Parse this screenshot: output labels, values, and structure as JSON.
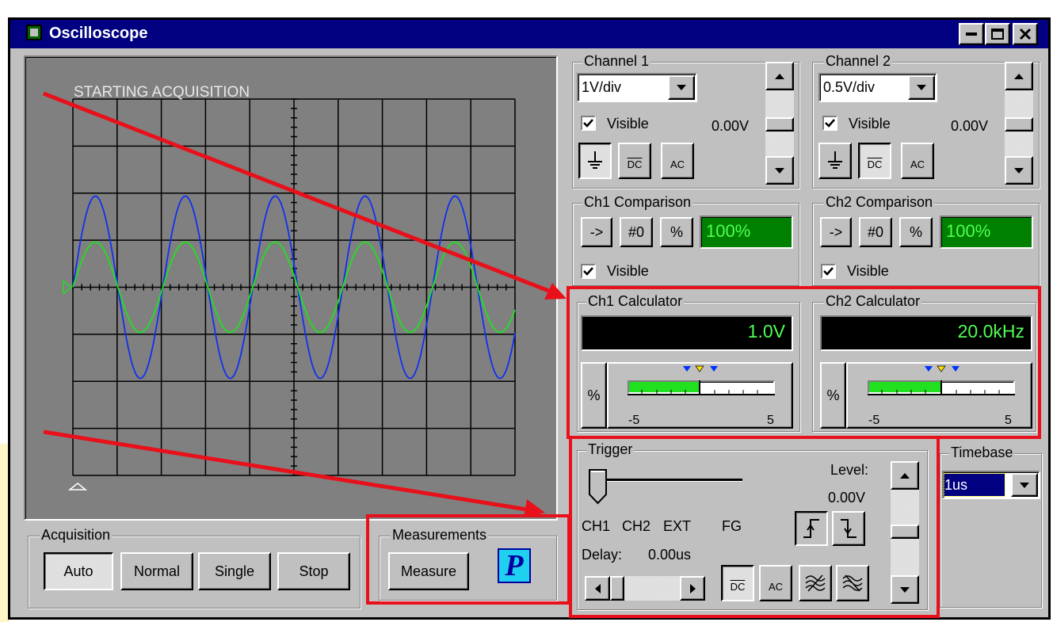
{
  "window": {
    "title": "Oscilloscope"
  },
  "screen": {
    "status": "STARTING ACQUISITION"
  },
  "channel1": {
    "title": "Channel 1",
    "scale": "1V/div",
    "visible": "Visible",
    "offset": "0.00V",
    "coupling": [
      "DC",
      "AC"
    ]
  },
  "channel2": {
    "title": "Channel 2",
    "scale": "0.5V/div",
    "visible": "Visible",
    "offset": "0.00V",
    "coupling": [
      "DC",
      "AC"
    ]
  },
  "ch1_comparison": {
    "title": "Ch1 Comparison",
    "buttons": [
      "->",
      "#0",
      "%"
    ],
    "display": "100%",
    "visible": "Visible"
  },
  "ch2_comparison": {
    "title": "Ch2 Comparison",
    "buttons": [
      "->",
      "#0",
      "%"
    ],
    "display": "100%",
    "visible": "Visible"
  },
  "ch1_calculator": {
    "title": "Ch1 Calculator",
    "display": "1.0V",
    "button": "%",
    "scale_min": -5,
    "scale_max": 5
  },
  "ch2_calculator": {
    "title": "Ch2 Calculator",
    "display": "20.0kHz",
    "button": "%",
    "scale_min": -5,
    "scale_max": 5
  },
  "trigger": {
    "title": "Trigger",
    "level_label": "Level:",
    "level": "0.00V",
    "sources": [
      "CH1",
      "CH2",
      "EXT",
      "FG"
    ],
    "delay_label": "Delay:",
    "delay": "0.00us",
    "coupling": [
      "DC",
      "AC"
    ]
  },
  "timebase": {
    "title": "Timebase",
    "value": "1us"
  },
  "acquisition": {
    "title": "Acquisition",
    "buttons": [
      "Auto",
      "Normal",
      "Single",
      "Stop"
    ]
  },
  "measurements": {
    "title": "Measurements",
    "button": "Measure",
    "icon": "P"
  }
}
